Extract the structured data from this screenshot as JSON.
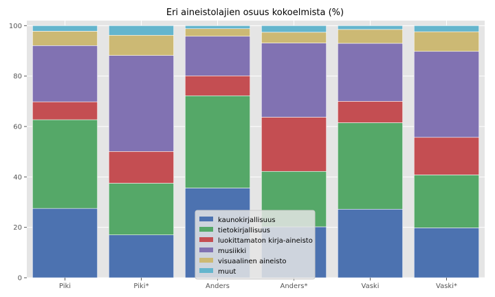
{
  "chart_data": {
    "type": "bar",
    "stacked": true,
    "title": "Eri aineistolajien osuus kokoelmista (%)",
    "xlabel": "",
    "ylabel": "",
    "ylim": [
      0,
      102
    ],
    "yticks": [
      0,
      20,
      40,
      60,
      80,
      100
    ],
    "grid": true,
    "legend_position": "bottom-center",
    "categories": [
      "Piki",
      "Piki*",
      "Anders",
      "Anders*",
      "Vaski",
      "Vaski*"
    ],
    "series": [
      {
        "name": "kaunokirjallisuus",
        "color": "#4c72b0",
        "values": [
          27.5,
          17.0,
          35.6,
          20.2,
          27.2,
          19.8
        ]
      },
      {
        "name": "tietokirjallisuus",
        "color": "#55a868",
        "values": [
          35.2,
          20.5,
          36.6,
          22.0,
          34.3,
          21.0
        ]
      },
      {
        "name": "luokittamaton kirja-aineisto",
        "color": "#c44e52",
        "values": [
          7.1,
          12.6,
          7.9,
          21.5,
          8.5,
          14.9
        ]
      },
      {
        "name": "musiikki",
        "color": "#8172b2",
        "values": [
          22.3,
          38.1,
          15.7,
          29.4,
          23.0,
          34.1
        ]
      },
      {
        "name": "visuaalinen aineisto",
        "color": "#ccb974",
        "values": [
          5.7,
          8.0,
          3.0,
          4.3,
          5.5,
          7.8
        ]
      },
      {
        "name": "muut",
        "color": "#64b5cd",
        "values": [
          2.2,
          3.8,
          1.2,
          2.6,
          1.5,
          2.4
        ]
      }
    ]
  }
}
